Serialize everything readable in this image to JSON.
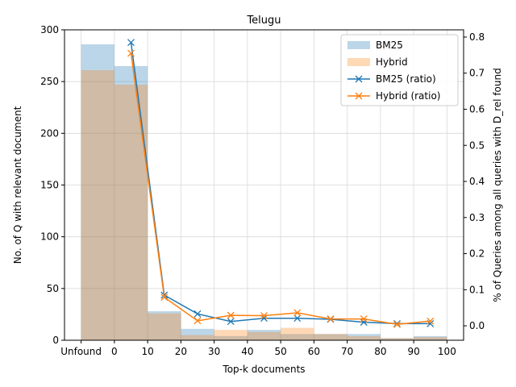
{
  "chart_data": {
    "type": "bar",
    "title": "Telugu",
    "xlabel": "Top-k documents",
    "ylabel": "No. of Q with relevant document",
    "y2label": "% of Queries among all queries with D_rel found",
    "x_tick_labels": [
      "Unfound",
      "0",
      "10",
      "20",
      "30",
      "40",
      "50",
      "60",
      "70",
      "80",
      "90",
      "100"
    ],
    "bins": [
      "Unfound",
      "0-10",
      "10-20",
      "20-30",
      "30-40",
      "40-50",
      "50-60",
      "60-70",
      "70-80",
      "80-90",
      "90-100"
    ],
    "ylim": [
      0,
      300
    ],
    "y_ticks": [
      0,
      50,
      100,
      150,
      200,
      250,
      300
    ],
    "y2lim": [
      -0.04,
      0.82
    ],
    "y2_ticks": [
      0.0,
      0.1,
      0.2,
      0.3,
      0.4,
      0.5,
      0.6,
      0.7,
      0.8
    ],
    "grid": true,
    "legend_position": "top-right",
    "series": [
      {
        "name": "BM25",
        "kind": "bar",
        "axis": "left",
        "color": "#1f77b4",
        "opacity": 0.3,
        "values": [
          286,
          265,
          28,
          11,
          4,
          10,
          6,
          6,
          6,
          2,
          4
        ]
      },
      {
        "name": "Hybrid",
        "kind": "bar",
        "axis": "left",
        "color": "#ff7f0e",
        "opacity": 0.3,
        "values": [
          261,
          247,
          26,
          5,
          10,
          8,
          12,
          6,
          4,
          2,
          3
        ]
      },
      {
        "name": "BM25 (ratio)",
        "kind": "line",
        "axis": "right",
        "color": "#1f77b4",
        "marker": "x",
        "x": [
          5,
          15,
          25,
          35,
          45,
          55,
          65,
          75,
          85,
          95
        ],
        "values": [
          0.785,
          0.085,
          0.033,
          0.012,
          0.021,
          0.021,
          0.018,
          0.01,
          0.006,
          0.006
        ]
      },
      {
        "name": "Hybrid (ratio)",
        "kind": "line",
        "axis": "right",
        "color": "#ff7f0e",
        "marker": "x",
        "x": [
          5,
          15,
          25,
          35,
          45,
          55,
          65,
          75,
          85,
          95
        ],
        "values": [
          0.755,
          0.079,
          0.014,
          0.029,
          0.028,
          0.036,
          0.019,
          0.019,
          0.004,
          0.013
        ]
      }
    ]
  }
}
